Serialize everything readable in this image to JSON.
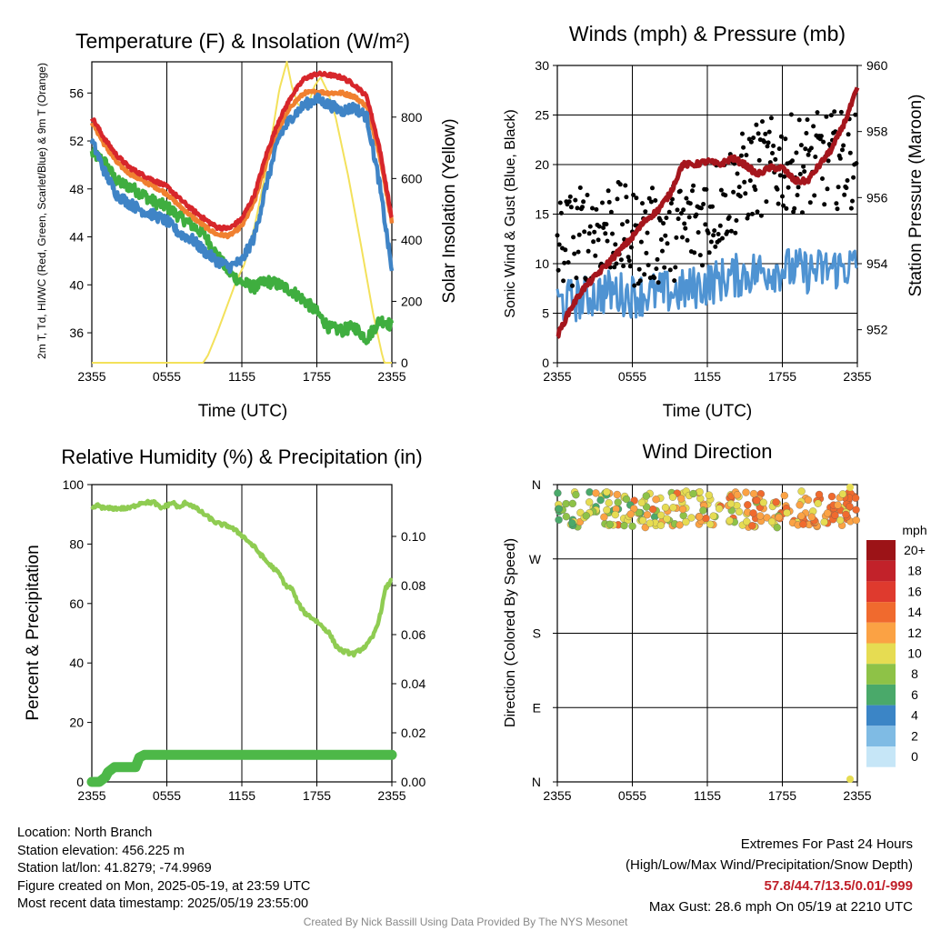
{
  "colors": {
    "t2m": "#d7262b",
    "td": "#3fae3f",
    "hiwc": "#3f84c6",
    "t9m": "#f08030",
    "solar": "#f3e15b",
    "wind": "#4f93d2",
    "gust": "#000000",
    "pressure": "#a5161d",
    "rh": "#8fcc52",
    "precip": "#4db848"
  },
  "chart_data": [
    {
      "type": "line",
      "title": "Temperature (F) & Insolation (W/m²)",
      "xlabel": "Time (UTC)",
      "ylabel": "2m T, Td, HI/WC (Red, Green, Scarlet/Blue) & 9m T (Orange)",
      "y2label": "Solar Insolation (Yellow)",
      "x_ticks": [
        "2355",
        "0555",
        "1155",
        "1755",
        "2355"
      ],
      "ylim": [
        33.5,
        58.6
      ],
      "yticks": [
        36,
        40,
        44,
        48,
        52,
        56
      ],
      "y2lim": [
        0,
        980
      ],
      "y2ticks": [
        0,
        200,
        400,
        600,
        800
      ],
      "series": [
        {
          "key": "t2m",
          "axis": "left",
          "noise": 0.15,
          "x": [
            0,
            1,
            2,
            3,
            4,
            5,
            6,
            7,
            8,
            9,
            10,
            11,
            12,
            13,
            14,
            15,
            16,
            17,
            18,
            19,
            20,
            21,
            22,
            23,
            24
          ],
          "y": [
            54,
            52.2,
            50.8,
            49.8,
            49.2,
            48.7,
            48.2,
            47.2,
            46.3,
            45.5,
            44.8,
            44.7,
            45.5,
            47.5,
            51,
            53.8,
            55.8,
            57.2,
            57.6,
            57.5,
            57.3,
            56.7,
            55.7,
            51.5,
            45.5
          ]
        },
        {
          "key": "t9m",
          "axis": "left",
          "noise": 0.15,
          "x": [
            0,
            1,
            2,
            3,
            4,
            5,
            6,
            7,
            8,
            9,
            10,
            11,
            12,
            13,
            14,
            15,
            16,
            17,
            18,
            19,
            20,
            21,
            22,
            23,
            24
          ],
          "y": [
            53.6,
            51.7,
            50.2,
            49.3,
            48.7,
            48.2,
            47.6,
            46.6,
            45.7,
            44.9,
            44.2,
            44.1,
            44.9,
            46.9,
            50.4,
            53.1,
            55,
            56,
            56.1,
            56,
            56,
            55.7,
            54.9,
            51,
            45.2
          ]
        },
        {
          "key": "hiwc",
          "axis": "left",
          "noise": 0.45,
          "x": [
            0,
            1,
            2,
            3,
            4,
            5,
            6,
            7,
            8,
            9,
            10,
            11,
            12,
            13,
            14,
            15,
            16,
            17,
            18,
            19,
            20,
            21,
            22,
            23,
            24
          ],
          "y": [
            52,
            49.5,
            47.5,
            46.8,
            46.2,
            45.8,
            45.3,
            44.3,
            43.8,
            42.8,
            42,
            41.5,
            42,
            44,
            48.5,
            52.4,
            54,
            55,
            55.5,
            55,
            54.5,
            54.8,
            54,
            48.5,
            41.2
          ]
        },
        {
          "key": "td",
          "axis": "left",
          "noise": 0.5,
          "x": [
            0,
            1,
            2,
            3,
            4,
            5,
            6,
            7,
            8,
            9,
            10,
            11,
            12,
            13,
            14,
            15,
            16,
            17,
            18,
            19,
            20,
            21,
            22,
            23,
            23.5,
            24
          ],
          "y": [
            51,
            50.3,
            48.6,
            48.2,
            47.6,
            46.9,
            46.5,
            45.7,
            45,
            44.2,
            42.5,
            41,
            40.2,
            39.8,
            40.3,
            40,
            39.5,
            38.7,
            37.7,
            36.4,
            36.2,
            36.5,
            35.5,
            37,
            37,
            36.5
          ]
        },
        {
          "key": "solar",
          "axis": "right",
          "noise": 0,
          "x": [
            0,
            1,
            8.9,
            9.3,
            10,
            10.5,
            11.5,
            12.2,
            13,
            14,
            15,
            15.6,
            16,
            16.5,
            17.2,
            17.8,
            18.3,
            18.9,
            19.5,
            20.5,
            21.5,
            22.5,
            23.2,
            23.4,
            24
          ],
          "y": [
            0,
            0,
            0,
            25,
            95,
            150,
            260,
            320,
            440,
            640,
            890,
            980,
            900,
            840,
            830,
            900,
            930,
            880,
            800,
            610,
            390,
            160,
            30,
            0,
            0
          ]
        }
      ]
    },
    {
      "type": "scatter",
      "title": "Winds (mph) & Pressure (mb)",
      "xlabel": "Time (UTC)",
      "ylabel": "Sonic Wind & Gust (Blue, Black)",
      "y2label": "Station Pressure (Maroon)",
      "x_ticks": [
        "2355",
        "0555",
        "1155",
        "1755",
        "2355"
      ],
      "ylim": [
        0,
        30
      ],
      "yticks": [
        0,
        5,
        10,
        15,
        20,
        25,
        30
      ],
      "y2lim": [
        951,
        960
      ],
      "y2ticks": [
        952,
        954,
        956,
        958,
        960
      ],
      "series": [
        {
          "key": "wind",
          "axis": "left",
          "x": [
            0,
            2,
            4,
            6,
            8,
            10,
            12,
            14,
            16,
            18,
            20,
            22,
            24
          ],
          "y": [
            6,
            6.5,
            7.2,
            6.8,
            7,
            7.2,
            8,
            8.7,
            9.2,
            9.5,
            9.2,
            9.5,
            9.8
          ]
        },
        {
          "key": "gust",
          "axis": "left",
          "x": [
            0,
            2,
            4,
            6,
            8,
            10,
            12,
            14,
            16,
            18,
            20,
            22,
            24
          ],
          "y": [
            12,
            13,
            14,
            12.5,
            12.8,
            13.5,
            15,
            17.5,
            19.5,
            20,
            20.2,
            20.5,
            20.5
          ]
        },
        {
          "key": "pressure",
          "axis": "right",
          "x": [
            0,
            1,
            2,
            3,
            4,
            5,
            6,
            7,
            8,
            9,
            10,
            11,
            12,
            13,
            14,
            15,
            16,
            17,
            18,
            19,
            20,
            21,
            22,
            23,
            24
          ],
          "y": [
            951.8,
            952.6,
            953.2,
            953.6,
            954,
            954.4,
            954.8,
            955.3,
            955.6,
            956.1,
            957,
            957,
            957.1,
            957,
            957.2,
            957,
            956.7,
            956.9,
            956.9,
            956.5,
            956.5,
            957,
            957.5,
            958.3,
            959.3
          ]
        }
      ]
    },
    {
      "type": "line",
      "title": "Relative Humidity (%) & Precipitation (in)",
      "ylabel": "Percent & Precipitation",
      "x_ticks": [
        "2355",
        "0555",
        "1155",
        "1755",
        "2355"
      ],
      "ylim": [
        0,
        100
      ],
      "yticks": [
        0,
        20,
        40,
        60,
        80,
        100
      ],
      "y2lim": [
        0,
        0.1211
      ],
      "y2ticks": [
        0,
        0.02,
        0.04,
        0.06,
        0.08,
        0.1
      ],
      "series": [
        {
          "key": "rh",
          "axis": "left",
          "x": [
            0,
            0.5,
            1,
            2,
            3,
            4,
            5,
            5.5,
            6,
            6.5,
            7,
            7.5,
            8,
            9,
            10,
            11,
            12,
            13,
            14,
            15,
            15.5,
            16,
            16.5,
            17,
            18,
            19,
            19.5,
            20,
            21,
            22,
            22.5,
            23,
            23.5,
            24
          ],
          "y": [
            92,
            93,
            92,
            92,
            92,
            94,
            94,
            92,
            93,
            94,
            92,
            94,
            93,
            90,
            87,
            86,
            83,
            79,
            74,
            70,
            66,
            65,
            60,
            57,
            54,
            50,
            46,
            44,
            43,
            46,
            49,
            55,
            65,
            68
          ]
        },
        {
          "key": "precip",
          "axis": "right",
          "x": [
            0,
            0.6,
            1.1,
            1.3,
            1.8,
            3.5,
            3.8,
            4.2,
            24
          ],
          "y": [
            0,
            0,
            0.002,
            0.004,
            0.006,
            0.006,
            0.01,
            0.011,
            0.011
          ]
        }
      ]
    },
    {
      "type": "scatter",
      "title": "Wind Direction",
      "ylabel": "Direction (Colored By Speed)",
      "x_ticks": [
        "2355",
        "0555",
        "1155",
        "1755",
        "2355"
      ],
      "y_ticks": [
        "N",
        "W",
        "S",
        "E",
        "N"
      ],
      "ylim": [
        0,
        360
      ],
      "direction_band_deg": [
        308,
        352
      ],
      "legend_title": "mph",
      "legend_labels": [
        "20+",
        "18",
        "16",
        "14",
        "12",
        "10",
        "8",
        "6",
        "4",
        "2",
        "0"
      ],
      "legend_colors": [
        "#9c1317",
        "#c2222a",
        "#df3a2e",
        "#f06a2e",
        "#fba244",
        "#e6dc52",
        "#8ec247",
        "#4aa96a",
        "#3b85c6",
        "#7fbbe4",
        "#c6e6f7"
      ]
    }
  ],
  "info": {
    "location": "Location: North Branch",
    "elevation": "Station elevation: 456.225 m",
    "latlon": "Station lat/lon: 41.8279; -74.9969",
    "created": "Figure created on Mon, 2025-05-19, at 23:59 UTC",
    "recent": "Most recent data timestamp: 2025/05/19 23:55:00"
  },
  "extremes": {
    "title": "Extremes For Past 24 Hours",
    "subtitle": "(High/Low/Max Wind/Precipitation/Snow Depth)",
    "values": "57.8/44.7/13.5/0.01/-999",
    "gust": "Max Gust: 28.6 mph On 05/19 at 2210 UTC"
  },
  "credit": "Created By Nick Bassill Using Data Provided By The NYS Mesonet"
}
